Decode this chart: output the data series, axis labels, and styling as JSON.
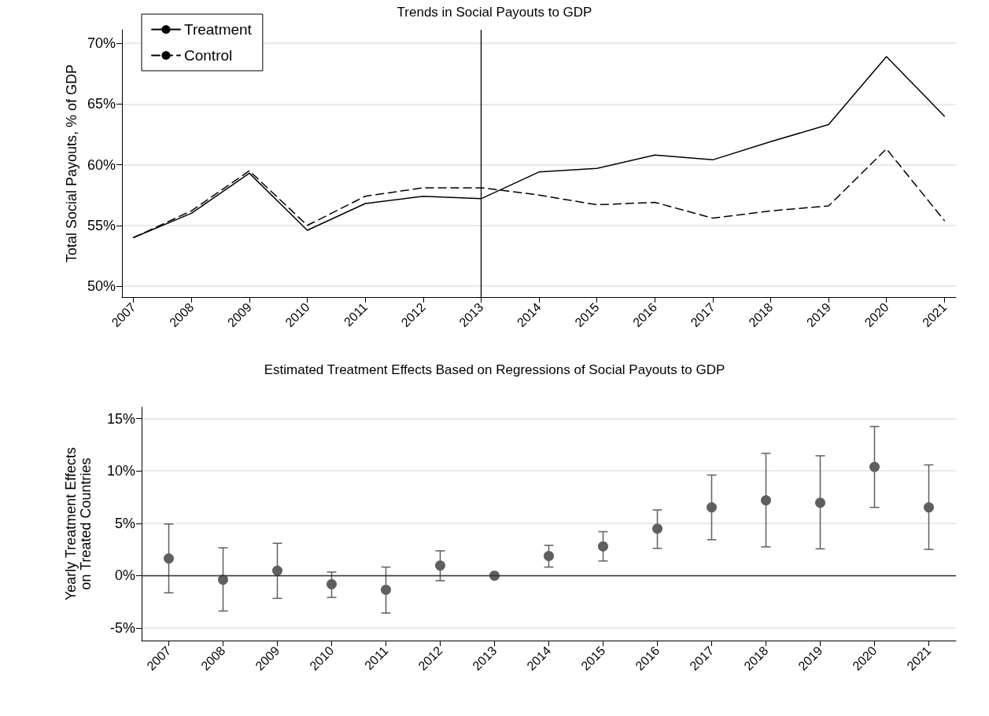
{
  "chart_data": [
    {
      "type": "line",
      "title": "Trends in Social Payouts to GDP",
      "ylabel": "Total Social Payouts, % of GDP",
      "x": [
        2007,
        2008,
        2009,
        2010,
        2011,
        2012,
        2013,
        2014,
        2015,
        2016,
        2017,
        2018,
        2019,
        2020,
        2021
      ],
      "series": [
        {
          "name": "Treatment",
          "color": "#000000",
          "line_style": "solid",
          "values": [
            54.0,
            56.0,
            59.3,
            54.6,
            56.8,
            57.4,
            57.2,
            59.4,
            59.7,
            60.8,
            60.4,
            61.9,
            63.3,
            68.9,
            64.0
          ]
        },
        {
          "name": "Control",
          "color": "#000000",
          "line_style": "dashed",
          "values": [
            54.0,
            56.2,
            59.5,
            55.0,
            57.4,
            58.1,
            58.1,
            57.5,
            56.7,
            56.9,
            55.6,
            56.2,
            56.6,
            61.3,
            55.4
          ]
        }
      ],
      "xlim": [
        2006.8,
        2021.2
      ],
      "xticks": [
        2007,
        2008,
        2009,
        2010,
        2011,
        2012,
        2013,
        2014,
        2015,
        2016,
        2017,
        2018,
        2019,
        2020,
        2021
      ],
      "ylim": [
        49.1,
        71.1
      ],
      "yticks": [
        {
          "value": 50,
          "label": "50%"
        },
        {
          "value": 55,
          "label": "55%"
        },
        {
          "value": 60,
          "label": "60%"
        },
        {
          "value": 65,
          "label": "65%"
        },
        {
          "value": 70,
          "label": "70%"
        }
      ],
      "ref_lines": [
        {
          "axis": "x",
          "value": 2013,
          "color": "#000000"
        }
      ],
      "grid": "y",
      "legend": "top left",
      "marker": "none"
    },
    {
      "type": "scatter",
      "title": "Estimated Treatment Effects Based on Regressions of Social Payouts to GDP",
      "ylabel": "Yearly Treatment Effects\non Treated Countries",
      "x": [
        2007,
        2008,
        2009,
        2010,
        2011,
        2012,
        2013,
        2014,
        2015,
        2016,
        2017,
        2018,
        2019,
        2020,
        2021
      ],
      "series": [
        {
          "color": "#5f5f5f",
          "values": [
            1.64,
            -0.39,
            0.48,
            -0.82,
            -1.35,
            0.97,
            0,
            1.88,
            2.8,
            4.49,
            6.52,
            7.2,
            6.96,
            10.39,
            6.52
          ],
          "errors": [
            [
              -1.64,
              4.93
            ],
            [
              -3.38,
              2.66
            ],
            [
              -2.17,
              3.09
            ],
            [
              -2.08,
              0.34
            ],
            [
              -3.57,
              0.82
            ],
            [
              -0.48,
              2.37
            ],
            null,
            [
              0.82,
              2.9
            ],
            [
              1.4,
              4.2
            ],
            [
              2.61,
              6.28
            ],
            [
              3.43,
              9.61
            ],
            [
              2.75,
              11.69
            ],
            [
              2.56,
              11.45
            ],
            [
              6.52,
              14.25
            ],
            [
              2.51,
              10.58
            ]
          ]
        }
      ],
      "xlim": [
        2006.5,
        2021.5
      ],
      "xticks": [
        2007,
        2008,
        2009,
        2010,
        2011,
        2012,
        2013,
        2014,
        2015,
        2016,
        2017,
        2018,
        2019,
        2020,
        2021
      ],
      "ylim": [
        -6.2,
        16.1
      ],
      "yticks": [
        {
          "value": -5,
          "label": "-5%"
        },
        {
          "value": 0,
          "label": "0%"
        },
        {
          "value": 5,
          "label": "5%"
        },
        {
          "value": 10,
          "label": "10%"
        },
        {
          "value": 15,
          "label": "15%"
        }
      ],
      "ref_lines": [
        {
          "axis": "y",
          "value": 0,
          "color": "#333333"
        }
      ],
      "grid": "y",
      "marker": "circle"
    }
  ]
}
